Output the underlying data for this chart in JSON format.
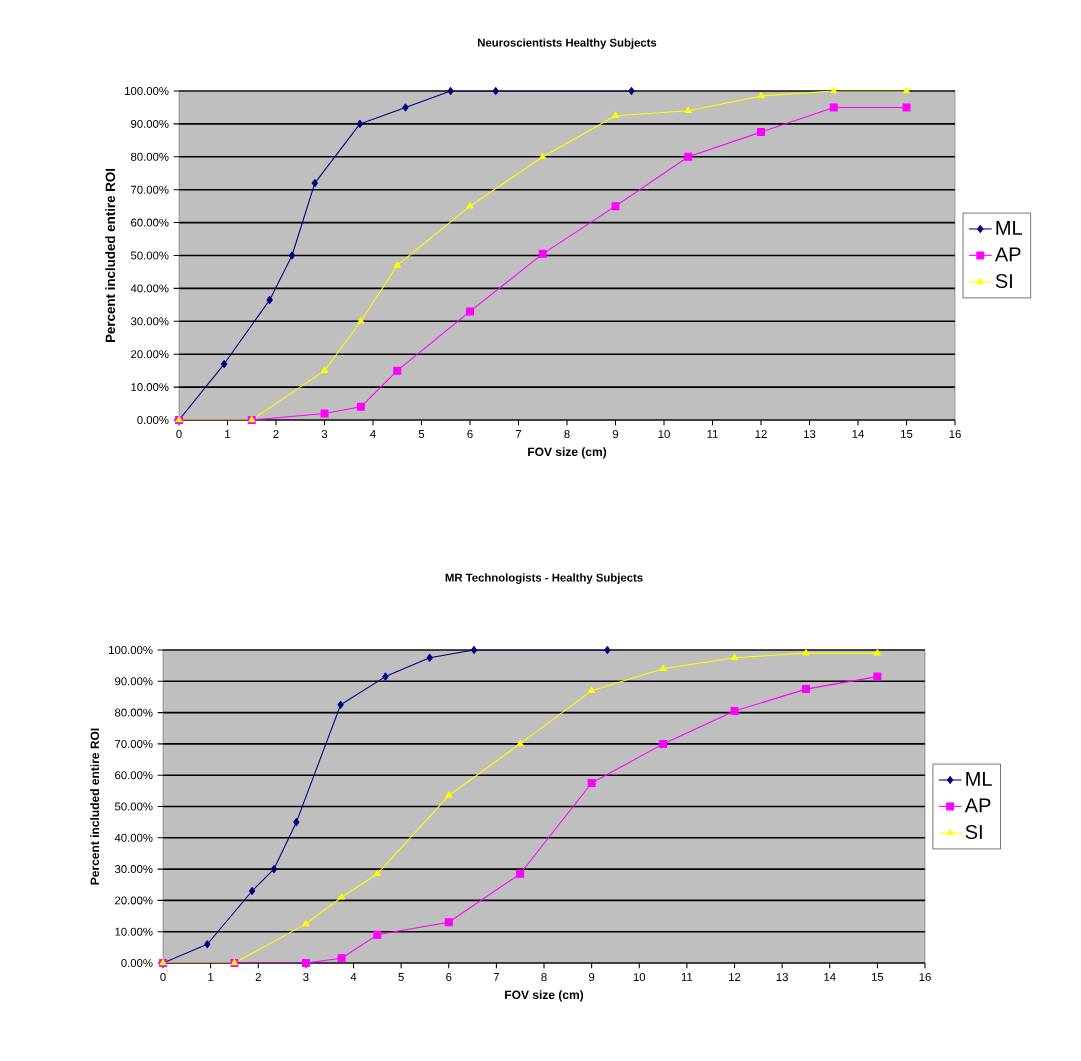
{
  "chart_data": [
    {
      "type": "line",
      "title": "Neuroscientists Healthy Subjects",
      "xlabel": "FOV size (cm)",
      "ylabel": "Percent included entire ROI",
      "xlim": [
        0,
        16
      ],
      "xticks": [
        0,
        1,
        2,
        3,
        4,
        5,
        6,
        7,
        8,
        9,
        10,
        11,
        12,
        13,
        14,
        15,
        16
      ],
      "ylim": [
        0,
        100
      ],
      "yticks": [
        {
          "value": 0,
          "label": "0.00%"
        },
        {
          "value": 10,
          "label": "10.00%"
        },
        {
          "value": 20,
          "label": "20.00%"
        },
        {
          "value": 30,
          "label": "30.00%"
        },
        {
          "value": 40,
          "label": "40.00%"
        },
        {
          "value": 50,
          "label": "50.00%"
        },
        {
          "value": 60,
          "label": "60.00%"
        },
        {
          "value": 70,
          "label": "70.00%"
        },
        {
          "value": 80,
          "label": "80.00%"
        },
        {
          "value": 90,
          "label": "90.00%"
        },
        {
          "value": 100,
          "label": "100.00%"
        }
      ],
      "grid": "y",
      "legend": "right",
      "line_style": "solid",
      "series": [
        {
          "name": "ML",
          "color": "#000080",
          "marker": "diamond",
          "x": [
            0,
            0.93,
            1.87,
            2.33,
            2.8,
            3.73,
            4.67,
            5.6,
            6.53,
            9.33
          ],
          "values": [
            0,
            17,
            36.5,
            50,
            72,
            90,
            95,
            100,
            100,
            100
          ]
        },
        {
          "name": "AP",
          "color": "#ff00ff",
          "marker": "square",
          "x": [
            0,
            1.5,
            3,
            3.75,
            4.5,
            6,
            7.5,
            9,
            10.5,
            12,
            13.5,
            15
          ],
          "values": [
            0,
            0,
            2,
            4,
            15,
            33,
            50.5,
            65,
            80,
            87.5,
            95,
            95
          ]
        },
        {
          "name": "SI",
          "color": "#ffff00",
          "marker": "triangle",
          "x": [
            0,
            1.5,
            3,
            3.75,
            4.5,
            6,
            7.5,
            9,
            10.5,
            12,
            13.5,
            15
          ],
          "values": [
            0,
            0,
            15,
            30,
            47,
            65,
            80,
            92.5,
            94,
            98.5,
            100,
            100
          ]
        }
      ]
    },
    {
      "type": "line",
      "title": "MR Technologists - Healthy Subjects",
      "xlabel": "FOV size (cm)",
      "ylabel": "Percent included entire ROI",
      "xlim": [
        0,
        16
      ],
      "xticks": [
        0,
        1,
        2,
        3,
        4,
        5,
        6,
        7,
        8,
        9,
        10,
        11,
        12,
        13,
        14,
        15,
        16
      ],
      "ylim": [
        0,
        100
      ],
      "yticks": [
        {
          "value": 0,
          "label": "0.00%"
        },
        {
          "value": 10,
          "label": "10.00%"
        },
        {
          "value": 20,
          "label": "20.00%"
        },
        {
          "value": 30,
          "label": "30.00%"
        },
        {
          "value": 40,
          "label": "40.00%"
        },
        {
          "value": 50,
          "label": "50.00%"
        },
        {
          "value": 60,
          "label": "60.00%"
        },
        {
          "value": 70,
          "label": "70.00%"
        },
        {
          "value": 80,
          "label": "80.00%"
        },
        {
          "value": 90,
          "label": "90.00%"
        },
        {
          "value": 100,
          "label": "100.00%"
        }
      ],
      "grid": "y",
      "legend": "right",
      "line_style": "solid",
      "series": [
        {
          "name": "ML",
          "color": "#000080",
          "marker": "diamond",
          "x": [
            0,
            0.93,
            1.87,
            2.33,
            2.8,
            3.73,
            4.67,
            5.6,
            6.53,
            9.33
          ],
          "values": [
            0,
            6,
            23,
            30,
            45,
            82.5,
            91.5,
            97.5,
            100,
            100
          ]
        },
        {
          "name": "AP",
          "color": "#ff00ff",
          "marker": "square",
          "x": [
            0,
            1.5,
            3,
            3.75,
            4.5,
            6,
            7.5,
            9,
            10.5,
            12,
            13.5,
            15
          ],
          "values": [
            0,
            0,
            0,
            1.5,
            9,
            13,
            28.5,
            57.5,
            70,
            80.5,
            87.5,
            91.5
          ]
        },
        {
          "name": "SI",
          "color": "#ffff00",
          "marker": "triangle",
          "x": [
            0,
            1.5,
            3,
            3.75,
            4.5,
            6,
            7.5,
            9,
            10.5,
            12,
            13.5,
            15
          ],
          "values": [
            0,
            0,
            12.5,
            21,
            28.5,
            53.5,
            70,
            87,
            94,
            97.5,
            99,
            99
          ]
        }
      ]
    }
  ]
}
